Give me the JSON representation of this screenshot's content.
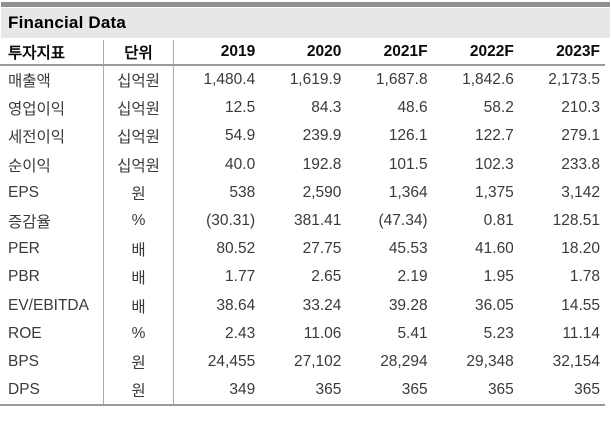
{
  "title": "Financial Data",
  "colors": {
    "top_bar": "#919191",
    "title_band_bg": "#e7e7e7",
    "grid_line": "#9a9a9a",
    "data_text": "#3a3a3a"
  },
  "table": {
    "columns": [
      "투자지표",
      "단위",
      "2019",
      "2020",
      "2021F",
      "2022F",
      "2023F"
    ],
    "rows": [
      {
        "indicator": "매출액",
        "unit": "십억원",
        "values": [
          "1,480.4",
          "1,619.9",
          "1,687.8",
          "1,842.6",
          "2,173.5"
        ]
      },
      {
        "indicator": "영업이익",
        "unit": "십억원",
        "values": [
          "12.5",
          "84.3",
          "48.6",
          "58.2",
          "210.3"
        ]
      },
      {
        "indicator": "세전이익",
        "unit": "십억원",
        "values": [
          "54.9",
          "239.9",
          "126.1",
          "122.7",
          "279.1"
        ]
      },
      {
        "indicator": "순이익",
        "unit": "십억원",
        "values": [
          "40.0",
          "192.8",
          "101.5",
          "102.3",
          "233.8"
        ]
      },
      {
        "indicator": "EPS",
        "unit": "원",
        "values": [
          "538",
          "2,590",
          "1,364",
          "1,375",
          "3,142"
        ]
      },
      {
        "indicator": "증감율",
        "unit": "%",
        "values": [
          "(30.31)",
          "381.41",
          "(47.34)",
          "0.81",
          "128.51"
        ]
      },
      {
        "indicator": "PER",
        "unit": "배",
        "values": [
          "80.52",
          "27.75",
          "45.53",
          "41.60",
          "18.20"
        ]
      },
      {
        "indicator": "PBR",
        "unit": "배",
        "values": [
          "1.77",
          "2.65",
          "2.19",
          "1.95",
          "1.78"
        ]
      },
      {
        "indicator": "EV/EBITDA",
        "unit": "배",
        "values": [
          "38.64",
          "33.24",
          "39.28",
          "36.05",
          "14.55"
        ]
      },
      {
        "indicator": "ROE",
        "unit": "%",
        "values": [
          "2.43",
          "11.06",
          "5.41",
          "5.23",
          "11.14"
        ]
      },
      {
        "indicator": "BPS",
        "unit": "원",
        "values": [
          "24,455",
          "27,102",
          "28,294",
          "29,348",
          "32,154"
        ]
      },
      {
        "indicator": "DPS",
        "unit": "원",
        "values": [
          "349",
          "365",
          "365",
          "365",
          "365"
        ]
      }
    ]
  }
}
